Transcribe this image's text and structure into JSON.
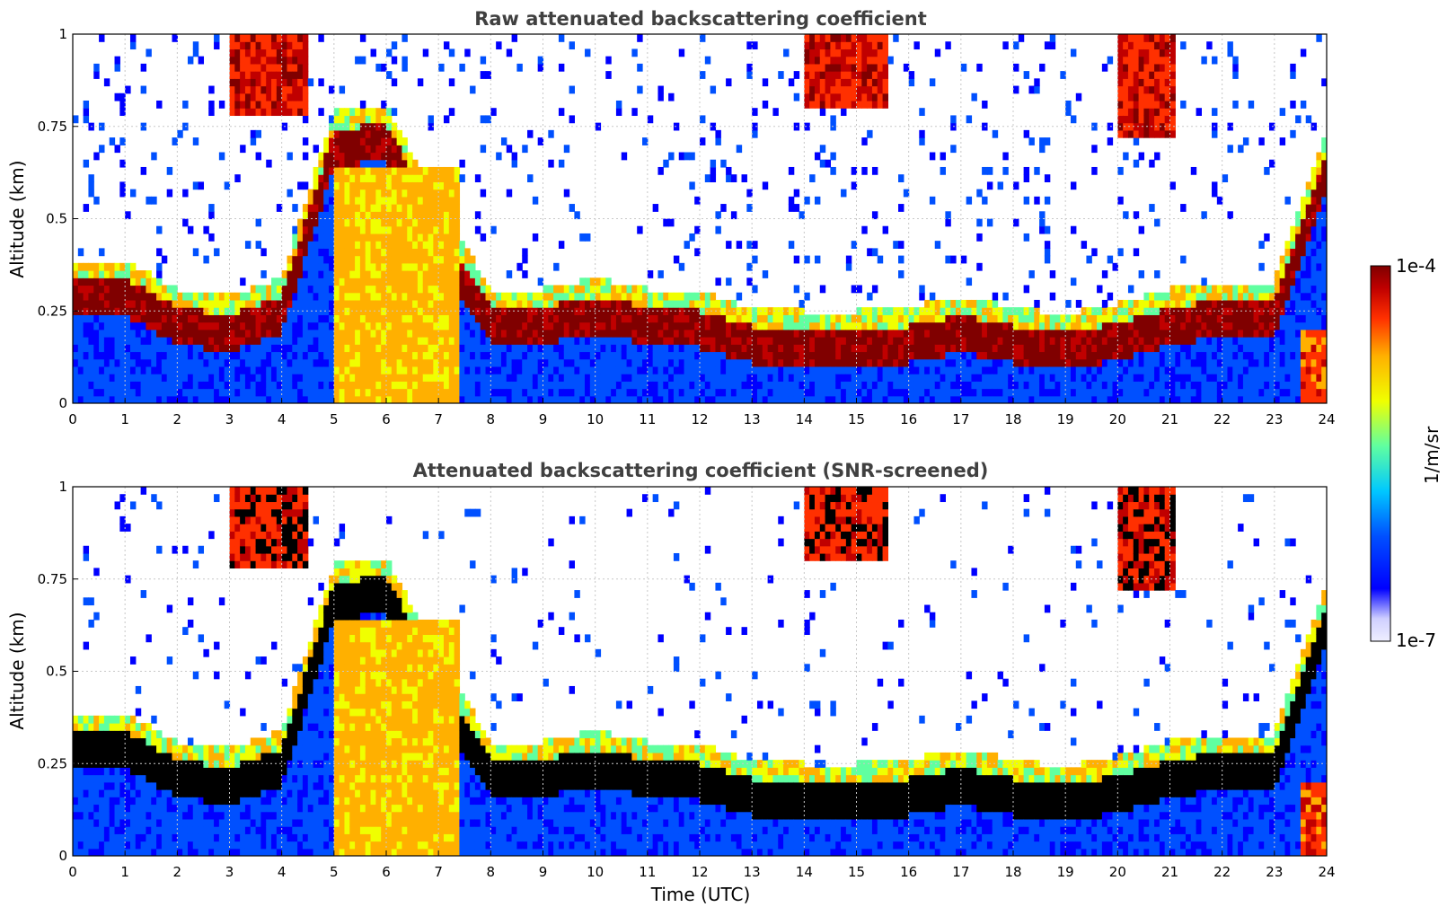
{
  "chart_data": [
    {
      "type": "heatmap",
      "title": "Raw attenuated backscattering coefficient",
      "xlabel": "",
      "ylabel": "Altitude (km)",
      "xlim": [
        0,
        24
      ],
      "ylim": [
        0,
        1
      ],
      "x_ticks": [
        "0",
        "1",
        "2",
        "3",
        "4",
        "5",
        "6",
        "7",
        "8",
        "9",
        "10",
        "11",
        "12",
        "13",
        "14",
        "15",
        "16",
        "17",
        "18",
        "19",
        "20",
        "21",
        "22",
        "23",
        "24"
      ],
      "y_ticks": [
        "0",
        "0.25",
        "0.5",
        "0.75",
        "1"
      ],
      "grid": true,
      "layers": [
        {
          "name": "boundary layer aerosol (dark red)",
          "points": [
            [
              0,
              0.3
            ],
            [
              1,
              0.3
            ],
            [
              2,
              0.22
            ],
            [
              3,
              0.2
            ],
            [
              4,
              0.25
            ],
            [
              5,
              0.7
            ],
            [
              6,
              0.72
            ],
            [
              7,
              0.45
            ],
            [
              8,
              0.22
            ],
            [
              9,
              0.22
            ],
            [
              10,
              0.25
            ],
            [
              11,
              0.22
            ],
            [
              12,
              0.21
            ],
            [
              13,
              0.17
            ],
            [
              14,
              0.16
            ],
            [
              15,
              0.16
            ],
            [
              16,
              0.17
            ],
            [
              17,
              0.2
            ],
            [
              18,
              0.17
            ],
            [
              19,
              0.15
            ],
            [
              20,
              0.18
            ],
            [
              21,
              0.22
            ],
            [
              22,
              0.24
            ],
            [
              23,
              0.24
            ],
            [
              24,
              0.65
            ]
          ]
        },
        {
          "name": "elevated cloud 14-15.5 h",
          "altitude_range": [
            0.8,
            1.0
          ]
        },
        {
          "name": "elevated cloud 20-21 h",
          "altitude_range": [
            0.75,
            1.0
          ]
        }
      ]
    },
    {
      "type": "heatmap",
      "title": "Attenuated backscattering coefficient (SNR-screened)",
      "xlabel": "Time (UTC)",
      "ylabel": "Altitude (km)",
      "xlim": [
        0,
        24
      ],
      "ylim": [
        0,
        1
      ],
      "x_ticks": [
        "0",
        "1",
        "2",
        "3",
        "4",
        "5",
        "6",
        "7",
        "8",
        "9",
        "10",
        "11",
        "12",
        "13",
        "14",
        "15",
        "16",
        "17",
        "18",
        "19",
        "20",
        "21",
        "22",
        "23",
        "24"
      ],
      "y_ticks": [
        "0",
        "0.25",
        "0.5",
        "0.75",
        "1"
      ],
      "grid": true
    }
  ],
  "colorbar": {
    "label": "1/m/sr",
    "max_label": "1e-4",
    "min_label": "1e-7",
    "colors": [
      "#efefff",
      "#cfcfff",
      "#0000ff",
      "#0050ff",
      "#00c8ff",
      "#60ffa0",
      "#f0ff00",
      "#ffb000",
      "#ff3000",
      "#c00000",
      "#800000"
    ]
  }
}
